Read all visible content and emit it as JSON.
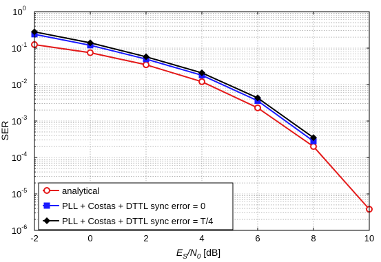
{
  "chart_data": {
    "type": "line",
    "xlabel": "E_S/N_0 [dB]",
    "xlabel_parts": {
      "main": "E",
      "sub1": "S",
      "mid": "/N",
      "sub2": "0",
      "unit": " [dB]"
    },
    "ylabel": "SER",
    "xlim": [
      -2,
      10
    ],
    "ylim": [
      1e-06,
      1
    ],
    "yscale": "log",
    "grid": true,
    "legend_position": "bottom-left",
    "x_ticks": [
      -2,
      0,
      2,
      4,
      6,
      8,
      10
    ],
    "x_tick_labels": [
      "-2",
      "0",
      "2",
      "4",
      "6",
      "8",
      "10"
    ],
    "y_ticks": [
      {
        "base": "10",
        "exp": "0",
        "value": 1
      },
      {
        "base": "10",
        "exp": "-1",
        "value": 0.1
      },
      {
        "base": "10",
        "exp": "-2",
        "value": 0.01
      },
      {
        "base": "10",
        "exp": "-3",
        "value": 0.001
      },
      {
        "base": "10",
        "exp": "-4",
        "value": 0.0001
      },
      {
        "base": "10",
        "exp": "-5",
        "value": 1e-05
      },
      {
        "base": "10",
        "exp": "-6",
        "value": 1e-06
      }
    ],
    "series": [
      {
        "name": "analytical",
        "color": "#e41a1a",
        "marker": "circle",
        "x": [
          -2,
          0,
          2,
          4,
          6,
          8,
          10
        ],
        "y": [
          0.125,
          0.075,
          0.035,
          0.012,
          0.0023,
          0.0002,
          3.8e-06
        ]
      },
      {
        "name": "PLL + Costas + DTTL sync error = 0",
        "color": "#1a1aff",
        "marker": "square",
        "x": [
          -2,
          0,
          2,
          4,
          6,
          8
        ],
        "y": [
          0.24,
          0.12,
          0.05,
          0.018,
          0.0036,
          0.00028
        ]
      },
      {
        "name": "PLL + Costas + DTTL sync error = T/4",
        "color": "#000000",
        "marker": "diamond",
        "x": [
          -2,
          0,
          2,
          4,
          6,
          8
        ],
        "y": [
          0.28,
          0.14,
          0.058,
          0.021,
          0.0043,
          0.00035
        ]
      }
    ]
  }
}
